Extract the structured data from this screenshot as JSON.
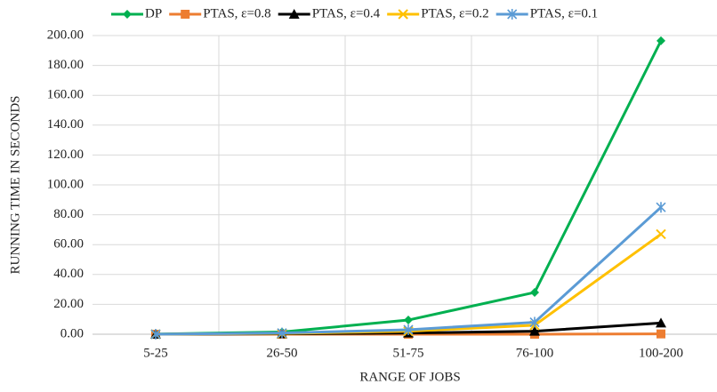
{
  "chart_data": {
    "type": "line",
    "x_label": "RANGE OF JOBS",
    "y_label": "RUNNING TIME IN SECONDS",
    "categories": [
      "5-25",
      "26-50",
      "51-75",
      "76-100",
      "100-200"
    ],
    "series": [
      {
        "name": "DP",
        "color": "#00b050",
        "marker": "diamond",
        "values": [
          0.1,
          1.5,
          9.5,
          28,
          196.5
        ]
      },
      {
        "name": "PTAS, ε=0.8",
        "color": "#ed7d31",
        "marker": "square",
        "values": [
          0,
          0,
          0,
          0,
          0.2
        ]
      },
      {
        "name": "PTAS, ε=0.4",
        "color": "#000000",
        "marker": "triangle",
        "values": [
          0,
          0.3,
          0.8,
          2,
          7.5
        ]
      },
      {
        "name": "PTAS, ε=0.2",
        "color": "#ffc000",
        "marker": "x",
        "values": [
          0,
          0.5,
          2,
          6,
          67
        ]
      },
      {
        "name": "PTAS, ε=0.1",
        "color": "#5b9bd5",
        "marker": "star",
        "values": [
          0,
          0.8,
          3,
          8,
          85
        ]
      }
    ],
    "ylim": [
      0,
      200
    ],
    "yticks": [
      {
        "value": 0,
        "label": "0.00"
      },
      {
        "value": 20,
        "label": "20.00"
      },
      {
        "value": 40,
        "label": "40.00"
      },
      {
        "value": 60,
        "label": "60.00"
      },
      {
        "value": 80,
        "label": "80.00"
      },
      {
        "value": 100,
        "label": "100.00"
      },
      {
        "value": 120,
        "label": "120.00"
      },
      {
        "value": 140,
        "label": "140.00"
      },
      {
        "value": 160,
        "label": "160.00"
      },
      {
        "value": 180,
        "label": "180.00"
      },
      {
        "value": 200,
        "label": "200.00"
      }
    ],
    "grid": true,
    "legend": "top"
  }
}
